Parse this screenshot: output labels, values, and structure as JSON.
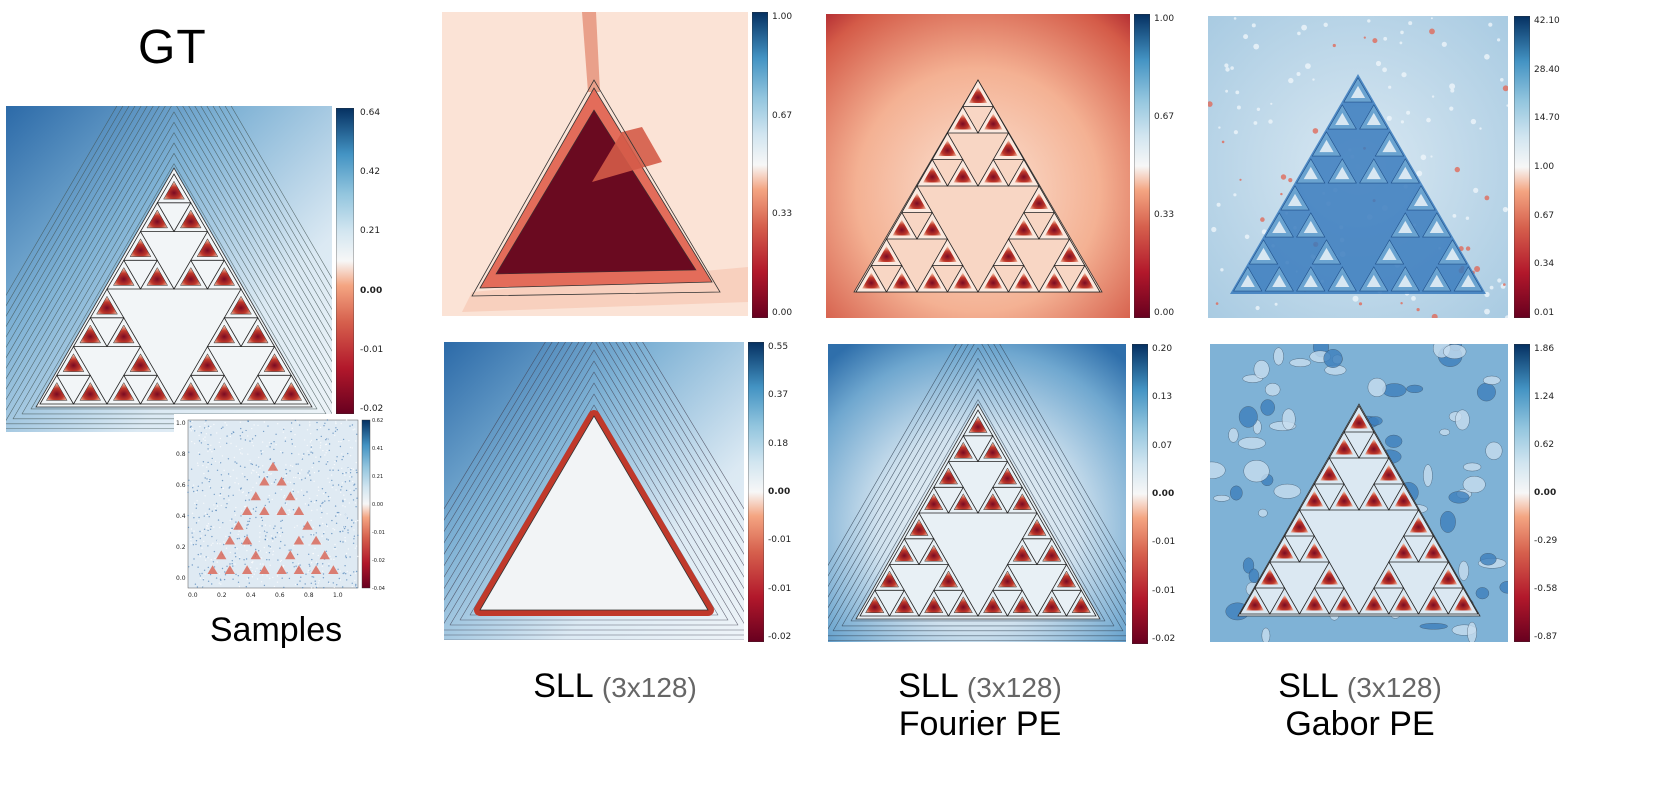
{
  "labels": {
    "gt": "GT",
    "samples": "Samples",
    "sll": "SLL",
    "arch": "(3x128)",
    "fourier": "Fourier PE",
    "gabor": "Gabor PE"
  },
  "colors": {
    "deep_red": "#67001f",
    "red": "#d6604d",
    "light_red": "#f4a582",
    "white": "#f7f7f7",
    "light_blue": "#92c5de",
    "blue": "#4393c3",
    "deep_blue": "#2166ac",
    "navy": "#053061"
  },
  "colorbars": {
    "gt": [
      "0.64",
      "0.42",
      "0.21",
      "0.00",
      "-0.01",
      "-0.02"
    ],
    "samples_x": [
      "0.0",
      "0.2",
      "0.4",
      "0.6",
      "0.8",
      "1.0"
    ],
    "samples_y": [
      "1.0",
      "0.8",
      "0.6",
      "0.4",
      "0.2",
      "0.0"
    ],
    "samples_cbar": [
      "0.62",
      "0.41",
      "0.21",
      "0.00",
      "-0.01",
      "-0.02",
      "-0.04"
    ],
    "sll_top": [
      "1.00",
      "0.67",
      "0.33",
      "0.00"
    ],
    "sll_bottom": [
      "0.55",
      "0.37",
      "0.18",
      "0.00",
      "-0.01",
      "-0.01",
      "-0.02"
    ],
    "fourier_top": [
      "1.00",
      "0.67",
      "0.33",
      "0.00"
    ],
    "fourier_bottom": [
      "0.20",
      "0.13",
      "0.07",
      "0.00",
      "-0.01",
      "-0.01",
      "-0.02"
    ],
    "gabor_top": [
      "42.10",
      "28.40",
      "14.70",
      "1.00",
      "0.67",
      "0.34",
      "0.01"
    ],
    "gabor_bottom": [
      "1.86",
      "1.24",
      "0.62",
      "0.00",
      "-0.29",
      "-0.58",
      "-0.87"
    ]
  }
}
